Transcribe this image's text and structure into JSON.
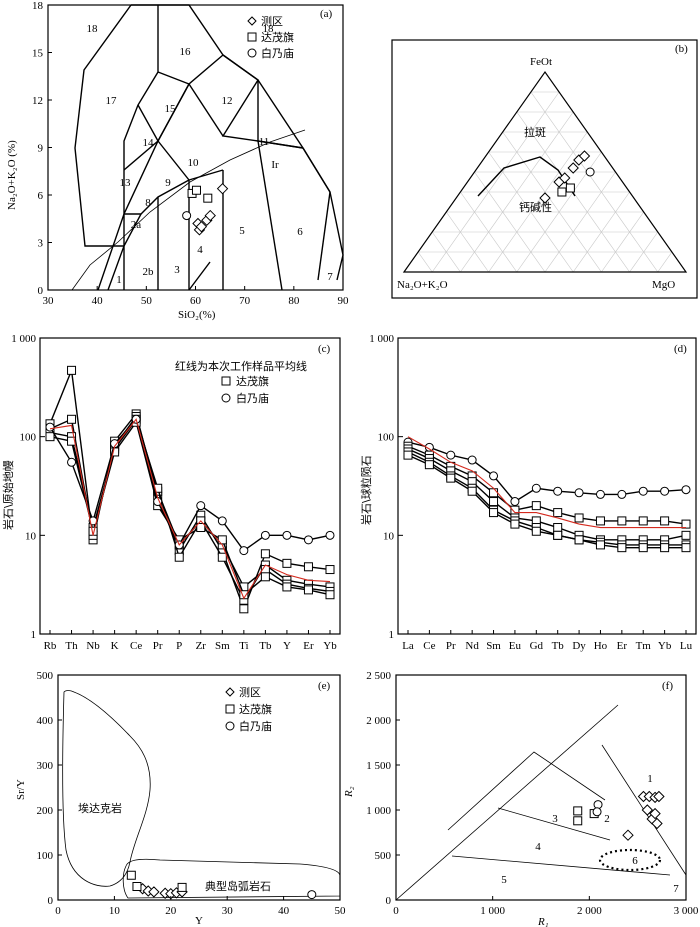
{
  "panels": {
    "a": {
      "tag": "(a)",
      "xlabel": "SiO₂(%)",
      "ylabel": "Na₂O+K₂O (%)"
    },
    "b": {
      "tag": "(b)",
      "apex_top": "FeOt",
      "apex_left": "Na₂O+K₂O",
      "apex_right": "MgO",
      "field_upper": "拉斑",
      "field_lower": "钙碱性"
    },
    "c": {
      "tag": "(c)",
      "note": "红线为本次工作样品平均线",
      "ylabel": "岩石\\原始地幔"
    },
    "d": {
      "tag": "(d)",
      "ylabel": "岩石\\球粒陨石"
    },
    "e": {
      "tag": "(e)",
      "xlabel": "Y",
      "ylabel": "Sr/Y",
      "field_adakite": "埃达克岩",
      "field_arc": "典型岛弧岩石"
    },
    "f": {
      "tag": "(f)",
      "xlabel": "R₁",
      "ylabel": "R₂"
    }
  },
  "legend": {
    "survey": "测区",
    "damaoqi": "达茂旗",
    "bainaimiao": "白乃庙"
  },
  "colors": {
    "mean_line": "#d42a1e",
    "grid": "#c8c8c8"
  },
  "chart_data": [
    {
      "panel": "a",
      "type": "scatter",
      "xlim": [
        30,
        90
      ],
      "ylim": [
        0,
        18
      ],
      "xticks": [
        "30",
        "40",
        "50",
        "60",
        "70",
        "80",
        "90"
      ],
      "yticks": [
        "0",
        "3",
        "6",
        "9",
        "12",
        "15",
        "18"
      ],
      "field_labels": [
        "18",
        "16",
        "18",
        "15",
        "12",
        "17",
        "14",
        "11",
        "Ir",
        "10",
        "13",
        "9",
        "8",
        "2a",
        "4",
        "5",
        "6",
        "2b",
        "3",
        "1",
        "7"
      ],
      "series": [
        {
          "name": "测区",
          "marker": "diamond",
          "points": [
            [
              60.5,
              4.2
            ],
            [
              60.8,
              3.8
            ],
            [
              61.2,
              4.0
            ],
            [
              62.3,
              4.4
            ],
            [
              63,
              4.7
            ],
            [
              65.5,
              6.4
            ]
          ]
        },
        {
          "name": "达茂旗",
          "marker": "square",
          "points": [
            [
              59.3,
              6.1
            ],
            [
              60.2,
              6.3
            ],
            [
              62.5,
              5.8
            ]
          ]
        },
        {
          "name": "白乃庙",
          "marker": "circle",
          "points": [
            [
              58.2,
              4.7
            ]
          ]
        }
      ]
    },
    {
      "panel": "b",
      "type": "scatter",
      "series": [
        {
          "name": "测区",
          "marker": "diamond",
          "points": [
            [
              0.5,
              0.37
            ],
            [
              0.55,
              0.45
            ],
            [
              0.57,
              0.47
            ],
            [
              0.6,
              0.52
            ],
            [
              0.62,
              0.56
            ],
            [
              0.64,
              0.58
            ]
          ]
        },
        {
          "name": "达茂旗",
          "marker": "square",
          "points": [
            [
              0.56,
              0.4
            ],
            [
              0.59,
              0.42
            ]
          ]
        },
        {
          "name": "白乃庙",
          "marker": "circle",
          "points": [
            [
              0.66,
              0.5
            ]
          ]
        }
      ]
    },
    {
      "panel": "c",
      "type": "line",
      "yscale": "log",
      "ylim": [
        1,
        1000
      ],
      "categories": [
        "Rb",
        "Th",
        "Nb",
        "K",
        "Ce",
        "Pr",
        "P",
        "Zr",
        "Sm",
        "Ti",
        "Tb",
        "Y",
        "Er",
        "Yb"
      ],
      "yticks": [
        "1",
        "10",
        "100",
        "1 000"
      ],
      "series": [
        {
          "name": "达茂旗",
          "marker": "square",
          "values": [
            135,
            470,
            9,
            90,
            170,
            25,
            7,
            16,
            7,
            1.8,
            6.5,
            5.2,
            4.8,
            4.5
          ]
        },
        {
          "name": "达茂旗",
          "marker": "square",
          "values": [
            120,
            150,
            10,
            80,
            160,
            28,
            8,
            14,
            6,
            2.2,
            5,
            3.5,
            3.2,
            3
          ]
        },
        {
          "name": "达茂旗",
          "marker": "square",
          "values": [
            110,
            100,
            12,
            75,
            150,
            30,
            6,
            14,
            8,
            3,
            4.5,
            3.2,
            2.9,
            2.7
          ]
        },
        {
          "name": "达茂旗",
          "marker": "square",
          "values": [
            100,
            90,
            11,
            70,
            140,
            20,
            9,
            12,
            9,
            2.5,
            3.8,
            3,
            2.8,
            2.5
          ]
        },
        {
          "name": "白乃庙",
          "marker": "circle",
          "values": [
            125,
            55,
            14,
            85,
            150,
            22,
            8,
            20,
            14,
            7,
            10,
            10,
            9,
            10
          ]
        },
        {
          "name": "mean",
          "marker": "none",
          "values": [
            120,
            130,
            10,
            80,
            150,
            24,
            8,
            14,
            8,
            2.3,
            5,
            4,
            3.5,
            3.4
          ]
        }
      ]
    },
    {
      "panel": "d",
      "type": "line",
      "yscale": "log",
      "ylim": [
        1,
        1000
      ],
      "categories": [
        "La",
        "Ce",
        "Pr",
        "Nd",
        "Sm",
        "Eu",
        "Gd",
        "Tb",
        "Dy",
        "Ho",
        "Er",
        "Tm",
        "Yb",
        "Lu"
      ],
      "yticks": [
        "1",
        "10",
        "100",
        "1 000"
      ],
      "series": [
        {
          "name": "白乃庙",
          "marker": "circle",
          "values": [
            88,
            78,
            65,
            58,
            40,
            22,
            30,
            28,
            27,
            26,
            26,
            28,
            28,
            29
          ]
        },
        {
          "name": "达茂旗",
          "marker": "square",
          "values": [
            80,
            65,
            50,
            40,
            27,
            18,
            20,
            17,
            15,
            14,
            14,
            14,
            14,
            13
          ]
        },
        {
          "name": "达茂旗",
          "marker": "square",
          "values": [
            75,
            60,
            45,
            35,
            22,
            15,
            14,
            12,
            10,
            9,
            9,
            9,
            9,
            10
          ]
        },
        {
          "name": "达茂旗",
          "marker": "square",
          "values": [
            70,
            55,
            40,
            30,
            18,
            14,
            12,
            10,
            9,
            8.5,
            8,
            8,
            8,
            8
          ]
        },
        {
          "name": "达茂旗",
          "marker": "square",
          "values": [
            65,
            52,
            38,
            28,
            17,
            13,
            11,
            10,
            9,
            8,
            7.5,
            7.5,
            7.5,
            7.5
          ]
        },
        {
          "name": "mean",
          "marker": "none",
          "values": [
            100,
            75,
            55,
            45,
            30,
            17,
            17,
            15,
            13,
            12,
            12,
            12,
            12,
            12
          ]
        }
      ]
    },
    {
      "panel": "e",
      "type": "scatter",
      "xlim": [
        0,
        50
      ],
      "ylim": [
        0,
        500
      ],
      "xticks": [
        "0",
        "10",
        "20",
        "30",
        "40",
        "50"
      ],
      "yticks": [
        "0",
        "100",
        "200",
        "300",
        "400",
        "500"
      ],
      "series": [
        {
          "name": "测区",
          "marker": "diamond",
          "points": [
            [
              15,
              25
            ],
            [
              16,
              20
            ],
            [
              17,
              18
            ],
            [
              19,
              15
            ],
            [
              20,
              14
            ],
            [
              21,
              16
            ],
            [
              22,
              18
            ]
          ]
        },
        {
          "name": "达茂旗",
          "marker": "square",
          "points": [
            [
              13,
              55
            ],
            [
              14,
              30
            ],
            [
              22,
              28
            ]
          ]
        },
        {
          "name": "白乃庙",
          "marker": "circle",
          "points": [
            [
              45,
              12
            ]
          ]
        }
      ]
    },
    {
      "panel": "f",
      "type": "scatter",
      "xlim": [
        0,
        3000
      ],
      "ylim": [
        0,
        2500
      ],
      "xticks": [
        "0",
        "1 000",
        "2 000",
        "3 000"
      ],
      "yticks": [
        "0",
        "500",
        "1 000",
        "1 500",
        "2 000",
        "2 500"
      ],
      "field_labels": [
        "1",
        "2",
        "3",
        "4",
        "5",
        "6",
        "7"
      ],
      "series": [
        {
          "name": "测区",
          "marker": "diamond",
          "points": [
            [
              2400,
              720
            ],
            [
              2560,
              1150
            ],
            [
              2600,
              1000
            ],
            [
              2620,
              1150
            ],
            [
              2650,
              900
            ],
            [
              2680,
              1140
            ],
            [
              2700,
              850
            ],
            [
              2720,
              1150
            ],
            [
              2680,
              960
            ]
          ]
        },
        {
          "name": "达茂旗",
          "marker": "square",
          "points": [
            [
              1880,
              990
            ],
            [
              1880,
              880
            ],
            [
              2050,
              960
            ]
          ]
        },
        {
          "name": "白乃庙",
          "marker": "circle",
          "points": [
            [
              2090,
              1060
            ],
            [
              2080,
              980
            ]
          ]
        }
      ]
    }
  ]
}
